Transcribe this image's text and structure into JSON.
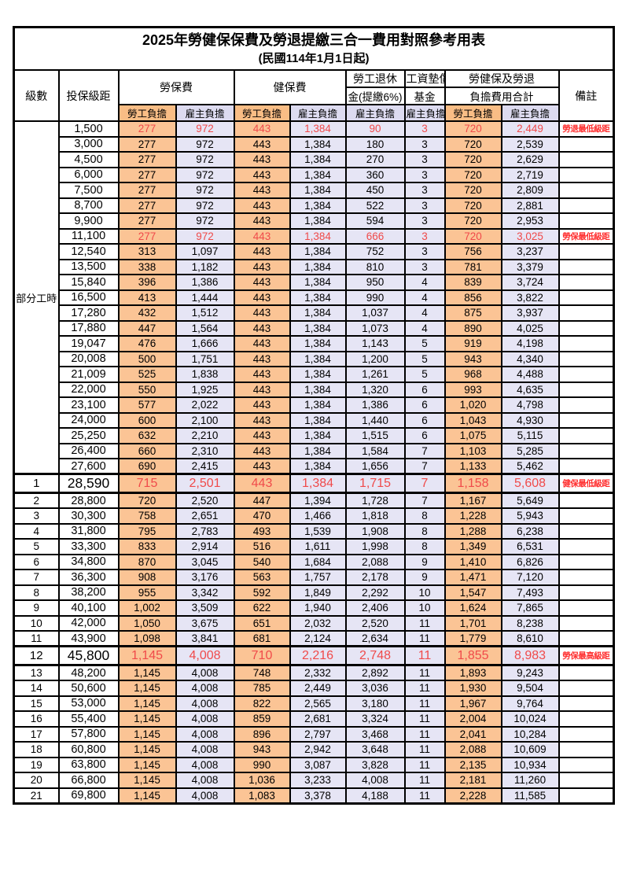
{
  "title": "2025年勞健保保費及勞退提繳三合一費用對照參考用表",
  "subtitle": "(民國114年1月1日起)",
  "columns": {
    "level": "級數",
    "salary": "投保級距",
    "labor": "勞保費",
    "health": "健保費",
    "pension_line1": "勞工退休",
    "pension_line2": "金(提繳6%)",
    "wage_fund_line1": "工資墊償",
    "wage_fund_line2": "基金",
    "total_line1": "勞健保及勞退",
    "total_line2": "負擔費用合計",
    "note": "備註",
    "employee": "勞工負擔",
    "employer": "雇主負擔"
  },
  "part_time_label": "部分工時",
  "part_time_rowspan": 23,
  "colors": {
    "employee_fill": "#fbc495",
    "employer_fill": "#e6e5f5",
    "header_employee_fill": "#f9bd85",
    "header_employer_fill": "#dddbf0",
    "highlight_value_text": "#f04a4a",
    "note_text": "#ff2e2e",
    "grid": "#000000"
  },
  "rows": [
    {
      "salary": "1,500",
      "v": [
        "277",
        "972",
        "443",
        "1,384",
        "90",
        "3",
        "720",
        "2,449"
      ],
      "note": "勞退最低級距",
      "red": true
    },
    {
      "salary": "3,000",
      "v": [
        "277",
        "972",
        "443",
        "1,384",
        "180",
        "3",
        "720",
        "2,539"
      ],
      "note": ""
    },
    {
      "salary": "4,500",
      "v": [
        "277",
        "972",
        "443",
        "1,384",
        "270",
        "3",
        "720",
        "2,629"
      ],
      "note": ""
    },
    {
      "salary": "6,000",
      "v": [
        "277",
        "972",
        "443",
        "1,384",
        "360",
        "3",
        "720",
        "2,719"
      ],
      "note": ""
    },
    {
      "salary": "7,500",
      "v": [
        "277",
        "972",
        "443",
        "1,384",
        "450",
        "3",
        "720",
        "2,809"
      ],
      "note": ""
    },
    {
      "salary": "8,700",
      "v": [
        "277",
        "972",
        "443",
        "1,384",
        "522",
        "3",
        "720",
        "2,881"
      ],
      "note": ""
    },
    {
      "salary": "9,900",
      "v": [
        "277",
        "972",
        "443",
        "1,384",
        "594",
        "3",
        "720",
        "2,953"
      ],
      "note": ""
    },
    {
      "salary": "11,100",
      "v": [
        "277",
        "972",
        "443",
        "1,384",
        "666",
        "3",
        "720",
        "3,025"
      ],
      "note": "勞保最低級距",
      "red": true
    },
    {
      "salary": "12,540",
      "v": [
        "313",
        "1,097",
        "443",
        "1,384",
        "752",
        "3",
        "756",
        "3,237"
      ],
      "note": ""
    },
    {
      "salary": "13,500",
      "v": [
        "338",
        "1,182",
        "443",
        "1,384",
        "810",
        "3",
        "781",
        "3,379"
      ],
      "note": ""
    },
    {
      "salary": "15,840",
      "v": [
        "396",
        "1,386",
        "443",
        "1,384",
        "950",
        "4",
        "839",
        "3,724"
      ],
      "note": ""
    },
    {
      "salary": "16,500",
      "v": [
        "413",
        "1,444",
        "443",
        "1,384",
        "990",
        "4",
        "856",
        "3,822"
      ],
      "note": ""
    },
    {
      "salary": "17,280",
      "v": [
        "432",
        "1,512",
        "443",
        "1,384",
        "1,037",
        "4",
        "875",
        "3,937"
      ],
      "note": ""
    },
    {
      "salary": "17,880",
      "v": [
        "447",
        "1,564",
        "443",
        "1,384",
        "1,073",
        "4",
        "890",
        "4,025"
      ],
      "note": ""
    },
    {
      "salary": "19,047",
      "v": [
        "476",
        "1,666",
        "443",
        "1,384",
        "1,143",
        "5",
        "919",
        "4,198"
      ],
      "note": ""
    },
    {
      "salary": "20,008",
      "v": [
        "500",
        "1,751",
        "443",
        "1,384",
        "1,200",
        "5",
        "943",
        "4,340"
      ],
      "note": ""
    },
    {
      "salary": "21,009",
      "v": [
        "525",
        "1,838",
        "443",
        "1,384",
        "1,261",
        "5",
        "968",
        "4,488"
      ],
      "note": ""
    },
    {
      "salary": "22,000",
      "v": [
        "550",
        "1,925",
        "443",
        "1,384",
        "1,320",
        "6",
        "993",
        "4,635"
      ],
      "note": ""
    },
    {
      "salary": "23,100",
      "v": [
        "577",
        "2,022",
        "443",
        "1,384",
        "1,386",
        "6",
        "1,020",
        "4,798"
      ],
      "note": ""
    },
    {
      "salary": "24,000",
      "v": [
        "600",
        "2,100",
        "443",
        "1,384",
        "1,440",
        "6",
        "1,043",
        "4,930"
      ],
      "note": ""
    },
    {
      "salary": "25,250",
      "v": [
        "632",
        "2,210",
        "443",
        "1,384",
        "1,515",
        "6",
        "1,075",
        "5,115"
      ],
      "note": ""
    },
    {
      "salary": "26,400",
      "v": [
        "660",
        "2,310",
        "443",
        "1,384",
        "1,584",
        "7",
        "1,103",
        "5,285"
      ],
      "note": ""
    },
    {
      "salary": "27,600",
      "v": [
        "690",
        "2,415",
        "443",
        "1,384",
        "1,656",
        "7",
        "1,133",
        "5,462"
      ],
      "note": ""
    },
    {
      "level": "1",
      "salary": "28,590",
      "v": [
        "715",
        "2,501",
        "443",
        "1,384",
        "1,715",
        "7",
        "1,158",
        "5,608"
      ],
      "note": "健保最低級距",
      "red": true,
      "big": true
    },
    {
      "level": "2",
      "salary": "28,800",
      "v": [
        "720",
        "2,520",
        "447",
        "1,394",
        "1,728",
        "7",
        "1,167",
        "5,649"
      ],
      "note": ""
    },
    {
      "level": "3",
      "salary": "30,300",
      "v": [
        "758",
        "2,651",
        "470",
        "1,466",
        "1,818",
        "8",
        "1,228",
        "5,943"
      ],
      "note": ""
    },
    {
      "level": "4",
      "salary": "31,800",
      "v": [
        "795",
        "2,783",
        "493",
        "1,539",
        "1,908",
        "8",
        "1,288",
        "6,238"
      ],
      "note": ""
    },
    {
      "level": "5",
      "salary": "33,300",
      "v": [
        "833",
        "2,914",
        "516",
        "1,611",
        "1,998",
        "8",
        "1,349",
        "6,531"
      ],
      "note": ""
    },
    {
      "level": "6",
      "salary": "34,800",
      "v": [
        "870",
        "3,045",
        "540",
        "1,684",
        "2,088",
        "9",
        "1,410",
        "6,826"
      ],
      "note": ""
    },
    {
      "level": "7",
      "salary": "36,300",
      "v": [
        "908",
        "3,176",
        "563",
        "1,757",
        "2,178",
        "9",
        "1,471",
        "7,120"
      ],
      "note": ""
    },
    {
      "level": "8",
      "salary": "38,200",
      "v": [
        "955",
        "3,342",
        "592",
        "1,849",
        "2,292",
        "10",
        "1,547",
        "7,493"
      ],
      "note": ""
    },
    {
      "level": "9",
      "salary": "40,100",
      "v": [
        "1,002",
        "3,509",
        "622",
        "1,940",
        "2,406",
        "10",
        "1,624",
        "7,865"
      ],
      "note": ""
    },
    {
      "level": "10",
      "salary": "42,000",
      "v": [
        "1,050",
        "3,675",
        "651",
        "2,032",
        "2,520",
        "11",
        "1,701",
        "8,238"
      ],
      "note": ""
    },
    {
      "level": "11",
      "salary": "43,900",
      "v": [
        "1,098",
        "3,841",
        "681",
        "2,124",
        "2,634",
        "11",
        "1,779",
        "8,610"
      ],
      "note": ""
    },
    {
      "level": "12",
      "salary": "45,800",
      "v": [
        "1,145",
        "4,008",
        "710",
        "2,216",
        "2,748",
        "11",
        "1,855",
        "8,983"
      ],
      "note": "勞保最高級距",
      "red": true,
      "big": true
    },
    {
      "level": "13",
      "salary": "48,200",
      "v": [
        "1,145",
        "4,008",
        "748",
        "2,332",
        "2,892",
        "11",
        "1,893",
        "9,243"
      ],
      "note": ""
    },
    {
      "level": "14",
      "salary": "50,600",
      "v": [
        "1,145",
        "4,008",
        "785",
        "2,449",
        "3,036",
        "11",
        "1,930",
        "9,504"
      ],
      "note": ""
    },
    {
      "level": "15",
      "salary": "53,000",
      "v": [
        "1,145",
        "4,008",
        "822",
        "2,565",
        "3,180",
        "11",
        "1,967",
        "9,764"
      ],
      "note": ""
    },
    {
      "level": "16",
      "salary": "55,400",
      "v": [
        "1,145",
        "4,008",
        "859",
        "2,681",
        "3,324",
        "11",
        "2,004",
        "10,024"
      ],
      "note": ""
    },
    {
      "level": "17",
      "salary": "57,800",
      "v": [
        "1,145",
        "4,008",
        "896",
        "2,797",
        "3,468",
        "11",
        "2,041",
        "10,284"
      ],
      "note": ""
    },
    {
      "level": "18",
      "salary": "60,800",
      "v": [
        "1,145",
        "4,008",
        "943",
        "2,942",
        "3,648",
        "11",
        "2,088",
        "10,609"
      ],
      "note": ""
    },
    {
      "level": "19",
      "salary": "63,800",
      "v": [
        "1,145",
        "4,008",
        "990",
        "3,087",
        "3,828",
        "11",
        "2,135",
        "10,934"
      ],
      "note": ""
    },
    {
      "level": "20",
      "salary": "66,800",
      "v": [
        "1,145",
        "4,008",
        "1,036",
        "3,233",
        "4,008",
        "11",
        "2,181",
        "11,260"
      ],
      "note": ""
    },
    {
      "level": "21",
      "salary": "69,800",
      "v": [
        "1,145",
        "4,008",
        "1,083",
        "3,378",
        "4,188",
        "11",
        "2,228",
        "11,585"
      ],
      "note": ""
    }
  ]
}
